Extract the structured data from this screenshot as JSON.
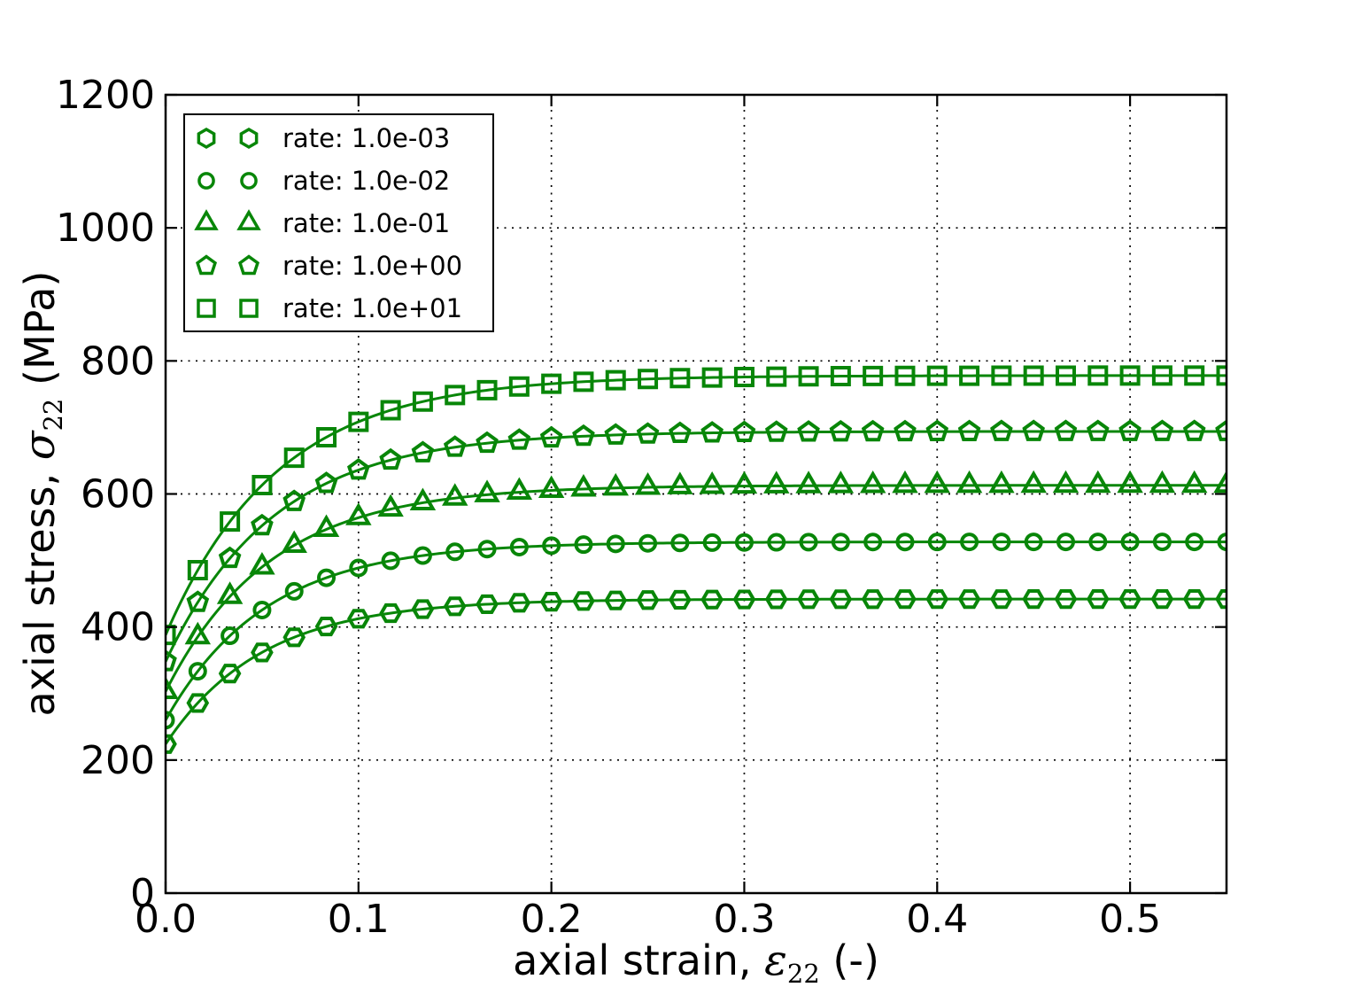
{
  "chart_data": {
    "type": "line",
    "title": "",
    "xlabel": {
      "prefix": "axial strain, ",
      "symbol": "ε",
      "sub": "22",
      "suffix": " (-)",
      "full": "axial strain, ε22 (-)"
    },
    "ylabel": {
      "prefix": "axial stress, ",
      "symbol": "σ",
      "sub": "22",
      "suffix": " (MPa)",
      "full": "axial stress, σ22 (MPa)"
    },
    "xlim": [
      0,
      0.55
    ],
    "ylim": [
      0,
      1200
    ],
    "xticks": [
      0,
      0.1,
      0.2,
      0.3,
      0.4,
      0.5
    ],
    "xtick_labels": [
      "0.0",
      "0.1",
      "0.2",
      "0.3",
      "0.4",
      "0.5"
    ],
    "yticks": [
      0,
      200,
      400,
      600,
      800,
      1000,
      1200
    ],
    "ytick_labels": [
      "0",
      "200",
      "400",
      "600",
      "800",
      "1000",
      "1200"
    ],
    "grid": "dotted",
    "grid_color": "#000000",
    "legend_position": "upper-left",
    "line_color": "#088608",
    "background_color": "#ffffff",
    "model": "stress(eps) = sigma_sat - (sigma_sat - sigma_0) * exp(-eps / eps_c)",
    "marker_strain_step": 0.0166667,
    "marker_count": 34,
    "series": [
      {
        "label": "rate: 1.0e-03",
        "marker": "hexagon-flat-top",
        "legend_marker": "hexagon-point-up",
        "sigma_0": 224,
        "sigma_sat": 442,
        "eps_c": 0.05
      },
      {
        "label": "rate: 1.0e-02",
        "marker": "circle",
        "legend_marker": "circle",
        "sigma_0": 260,
        "sigma_sat": 528,
        "eps_c": 0.052
      },
      {
        "label": "rate: 1.0e-01",
        "marker": "triangle-up",
        "legend_marker": "triangle-up",
        "sigma_0": 303,
        "sigma_sat": 613,
        "eps_c": 0.054
      },
      {
        "label": "rate: 1.0e+00",
        "marker": "pentagon",
        "legend_marker": "pentagon",
        "sigma_0": 348,
        "sigma_sat": 694,
        "eps_c": 0.056
      },
      {
        "label": "rate: 1.0e+01",
        "marker": "square",
        "legend_marker": "square",
        "sigma_0": 388,
        "sigma_sat": 778,
        "eps_c": 0.058
      }
    ]
  }
}
